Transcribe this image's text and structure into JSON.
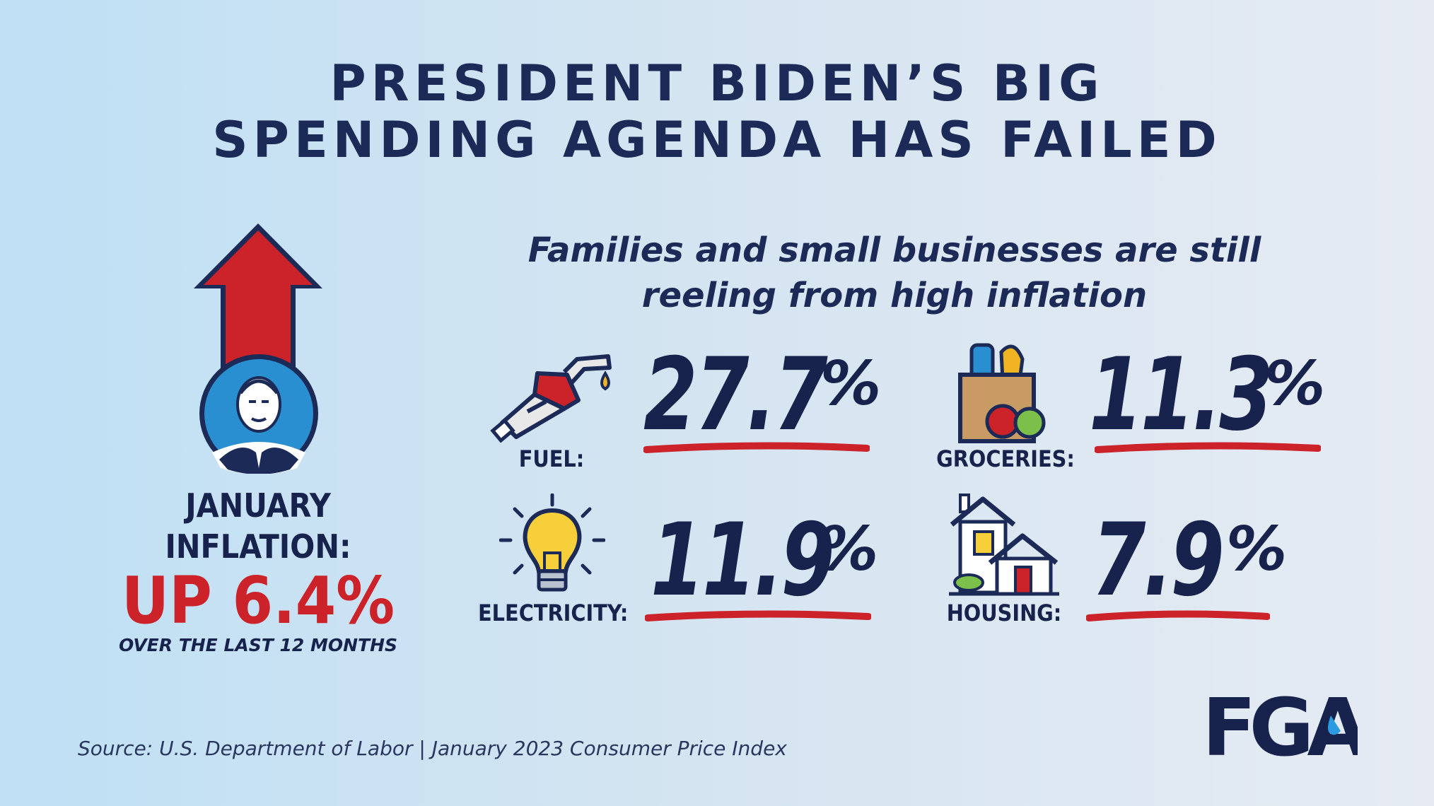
{
  "header": {
    "title_line1": "PRESIDENT BIDEN’S BIG",
    "title_line2": "SPENDING AGENDA HAS FAILED"
  },
  "subtitle": {
    "line1": "Families and small businesses are still",
    "line2": "reeling from high inflation"
  },
  "january": {
    "label_line1": "JANUARY",
    "label_line2": "INFLATION:",
    "value": "UP 6.4%",
    "note": "OVER THE LAST 12 MONTHS"
  },
  "stats": [
    {
      "category": "FUEL:",
      "value": "27.7",
      "unit": "%",
      "icon": "gas-pump-icon"
    },
    {
      "category": "GROCERIES:",
      "value": "11.3",
      "unit": "%",
      "icon": "grocery-bag-icon"
    },
    {
      "category": "ELECTRICITY:",
      "value": "11.9",
      "unit": "%",
      "icon": "light-bulb-icon"
    },
    {
      "category": "HOUSING:",
      "value": "7.9",
      "unit": "%",
      "icon": "houses-icon"
    }
  ],
  "source": "Source: U.S. Department of Labor | January 2023 Consumer Price Index",
  "logo": "FGA",
  "colors": {
    "navy": "#1b2a57",
    "red": "#cc2229",
    "accent_blue": "#1f8bd1"
  }
}
